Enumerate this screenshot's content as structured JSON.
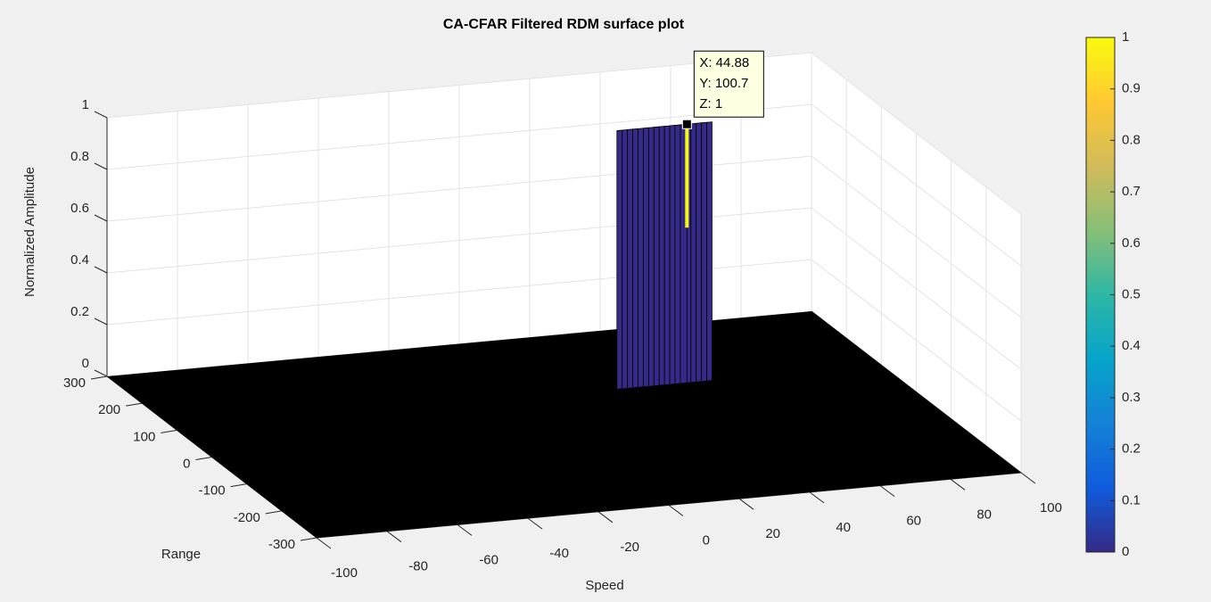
{
  "chart_data": {
    "type": "surface3d",
    "title": "CA-CFAR Filtered RDM surface plot",
    "x_label": "Speed",
    "y_label": "Range",
    "z_label": "Normalized Amplitude",
    "xlim": [
      -100,
      100
    ],
    "xticks": [
      -100,
      -80,
      -60,
      -40,
      -20,
      0,
      20,
      40,
      60,
      80,
      100
    ],
    "ylim": [
      -300,
      300
    ],
    "yticks": [
      -300,
      -200,
      -100,
      0,
      100,
      200,
      300
    ],
    "zlim": [
      0,
      1
    ],
    "zticks": [
      0,
      0.2,
      0.4,
      0.6,
      0.8,
      1
    ],
    "grid": true,
    "floor_color": "#000000",
    "colormap": [
      "#352a87",
      "#0f5cdd",
      "#1481d6",
      "#06a4ca",
      "#2eb7a4",
      "#87bf77",
      "#d1bb59",
      "#fec832",
      "#f9fb0e"
    ],
    "ridge": {
      "y": 100.7,
      "x": [
        25,
        26.5,
        28,
        29.5,
        31,
        32.5,
        34,
        35.5,
        37,
        38.5,
        40,
        41.5,
        43,
        44.88,
        46,
        47.5,
        49,
        50.5,
        52
      ],
      "values": [
        1,
        1,
        1,
        1,
        1,
        1,
        1,
        1,
        1,
        1,
        1,
        1,
        1,
        1,
        1,
        1,
        1,
        1,
        1
      ]
    },
    "colorbar": {
      "clim": [
        0,
        1
      ],
      "ticks": [
        0,
        0.1,
        0.2,
        0.3,
        0.4,
        0.5,
        0.6,
        0.7,
        0.8,
        0.9,
        1
      ]
    },
    "datatip": {
      "x": {
        "value": 44.88,
        "label": "X: 44.88"
      },
      "y": {
        "value": 100.7,
        "label": "Y: 100.7"
      },
      "z": {
        "value": 1,
        "label": "Z: 1"
      }
    }
  }
}
